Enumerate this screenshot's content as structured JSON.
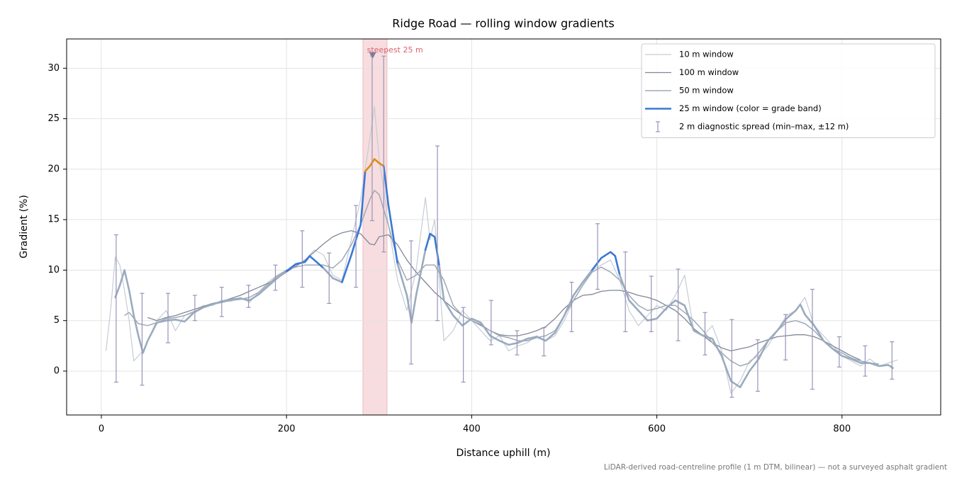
{
  "chart_data": {
    "type": "line",
    "title": "Ridge Road — rolling window gradients",
    "xlabel": "Distance uphill (m)",
    "ylabel": "Gradient (%)",
    "note": "LiDAR-derived road-centreline profile (1 m DTM, bilinear) — not a surveyed asphalt gradient",
    "xlim": [
      -37.5,
      906.6
    ],
    "ylim": [
      -4.35,
      32.9
    ],
    "xticks": [
      0,
      200,
      400,
      600,
      800
    ],
    "yticks": [
      0,
      5,
      10,
      15,
      20,
      25,
      30
    ],
    "grid": true,
    "legend": "upper right",
    "highlight": {
      "label": "steepest 25 m",
      "x": [
        282.5,
        308.6
      ],
      "color": "#d9646e",
      "peak_x": 293,
      "peak_y": 31.3
    },
    "series": [
      {
        "name": "10 m window",
        "color": "#c5ccd6",
        "width": 1.2,
        "x": [
          5,
          10,
          15,
          20,
          25,
          30,
          35,
          40,
          45,
          50,
          60,
          70,
          80,
          90,
          100,
          110,
          120,
          130,
          140,
          150,
          160,
          170,
          180,
          190,
          200,
          210,
          220,
          230,
          240,
          250,
          260,
          270,
          280,
          285,
          290,
          295,
          300,
          305,
          310,
          320,
          330,
          340,
          350,
          355,
          360,
          365,
          370,
          380,
          390,
          400,
          410,
          420,
          430,
          440,
          450,
          460,
          470,
          480,
          490,
          500,
          510,
          520,
          530,
          540,
          550,
          560,
          570,
          580,
          590,
          600,
          610,
          620,
          630,
          640,
          650,
          660,
          670,
          680,
          690,
          700,
          710,
          720,
          730,
          740,
          750,
          760,
          770,
          780,
          790,
          800,
          810,
          820,
          830,
          840,
          850,
          860
        ],
        "values": [
          2,
          6,
          11.3,
          10.5,
          8,
          5,
          1,
          1.5,
          2,
          3,
          5,
          6,
          4,
          5.5,
          5.8,
          6.5,
          6.5,
          7,
          6.9,
          7.3,
          6.8,
          7.8,
          8.8,
          9.5,
          10,
          10.3,
          11,
          12,
          11.5,
          9.5,
          9,
          13,
          17,
          20,
          23,
          26.2,
          21,
          18,
          14.5,
          9,
          6,
          10,
          17.2,
          13,
          15,
          9,
          3,
          4,
          6,
          5,
          4,
          3,
          3.5,
          2,
          2.5,
          2.8,
          3.5,
          3,
          3.5,
          5,
          7,
          8.5,
          10,
          10.5,
          11,
          9,
          6,
          4.5,
          5.5,
          6.5,
          6,
          7.5,
          9.5,
          4,
          3.5,
          4.5,
          2,
          -2.2,
          -1,
          1,
          1.5,
          2.5,
          4,
          5.5,
          6,
          7.3,
          4.5,
          3.5,
          2.5,
          1.5,
          1,
          0.5,
          1.2,
          0.5,
          0.8,
          1.1
        ]
      },
      {
        "name": "100 m window",
        "color": "#808896",
        "width": 1.3,
        "x": [
          50,
          60,
          70,
          80,
          90,
          100,
          110,
          120,
          130,
          140,
          150,
          160,
          170,
          180,
          190,
          200,
          210,
          220,
          230,
          240,
          250,
          260,
          270,
          280,
          290,
          295,
          300,
          310,
          320,
          330,
          340,
          350,
          360,
          370,
          380,
          390,
          400,
          410,
          420,
          430,
          440,
          450,
          460,
          470,
          480,
          490,
          500,
          510,
          520,
          530,
          540,
          550,
          560,
          570,
          580,
          590,
          600,
          610,
          620,
          630,
          640,
          650,
          660,
          670,
          680,
          690,
          700,
          710,
          720,
          730,
          740,
          750,
          760,
          770,
          780,
          790,
          800,
          810,
          820
        ],
        "values": [
          5.3,
          5.0,
          5.3,
          5.5,
          5.8,
          6.1,
          6.4,
          6.7,
          6.9,
          7.2,
          7.5,
          7.9,
          8.3,
          8.7,
          9.2,
          9.8,
          10.4,
          11.0,
          11.8,
          12.6,
          13.3,
          13.7,
          13.9,
          13.6,
          12.6,
          12.5,
          13.3,
          13.5,
          12.5,
          11.0,
          9.8,
          8.8,
          7.8,
          7.0,
          6.2,
          5.5,
          5.0,
          4.6,
          4.0,
          3.6,
          3.5,
          3.5,
          3.7,
          4.0,
          4.4,
          5.2,
          6.2,
          7.0,
          7.5,
          7.6,
          7.9,
          8.0,
          8.0,
          7.8,
          7.5,
          7.3,
          7.0,
          6.5,
          6.0,
          5.2,
          4.2,
          3.5,
          2.8,
          2.3,
          2.0,
          2.2,
          2.4,
          2.8,
          3.1,
          3.4,
          3.5,
          3.6,
          3.6,
          3.4,
          3.0,
          2.5,
          2.0,
          1.5,
          1.1
        ]
      },
      {
        "name": "50 m window",
        "color": "#a0a9b8",
        "width": 1.5,
        "x": [
          25,
          30,
          40,
          50,
          60,
          70,
          80,
          90,
          100,
          110,
          120,
          130,
          140,
          150,
          160,
          170,
          180,
          190,
          200,
          210,
          220,
          230,
          240,
          250,
          260,
          270,
          280,
          290,
          295,
          300,
          310,
          320,
          330,
          340,
          350,
          360,
          370,
          380,
          390,
          400,
          410,
          420,
          430,
          440,
          450,
          460,
          470,
          480,
          490,
          500,
          510,
          520,
          530,
          540,
          550,
          560,
          570,
          580,
          590,
          600,
          610,
          620,
          630,
          640,
          650,
          660,
          670,
          680,
          690,
          700,
          710,
          720,
          730,
          740,
          750,
          760,
          770,
          780,
          790,
          800,
          810,
          820,
          830,
          840
        ],
        "values": [
          5.5,
          5.8,
          4.7,
          4.5,
          4.8,
          5.2,
          5.3,
          5.5,
          5.9,
          6.3,
          6.6,
          6.8,
          7.0,
          7.1,
          7.3,
          7.8,
          8.6,
          9.4,
          10.0,
          10.3,
          10.5,
          10.5,
          10.5,
          10.2,
          11.0,
          12.5,
          14.5,
          17.0,
          17.9,
          17.5,
          14.5,
          11.0,
          9.0,
          9.5,
          10.5,
          10.5,
          9.0,
          6.5,
          5.5,
          5.0,
          4.5,
          4.0,
          3.5,
          3.3,
          3.0,
          3.0,
          3.3,
          3.5,
          4.0,
          5.5,
          7.0,
          8.5,
          9.8,
          10.3,
          9.8,
          9.0,
          7.5,
          6.5,
          6.0,
          6.2,
          6.5,
          6.5,
          5.8,
          5.0,
          4.0,
          2.8,
          1.8,
          1.0,
          0.5,
          0.8,
          1.8,
          3.0,
          4.0,
          4.8,
          5.0,
          4.7,
          4.0,
          3.0,
          2.2,
          1.8,
          1.3,
          1.0,
          0.8,
          0.7
        ]
      },
      {
        "name": "25 m window (color = grade band)",
        "color": "#3a78d4",
        "width": 2.6,
        "grade_band_limits": [
          10,
          20
        ],
        "grade_band_colors": [
          "#9aabbf",
          "#3a78d4",
          "#e08c10"
        ],
        "x": [
          15,
          20,
          25,
          30,
          35,
          40,
          45,
          50,
          60,
          70,
          80,
          90,
          100,
          110,
          120,
          130,
          140,
          150,
          160,
          170,
          180,
          190,
          200,
          210,
          220,
          225,
          230,
          240,
          250,
          260,
          270,
          280,
          285,
          290,
          295,
          300,
          305,
          310,
          320,
          330,
          335,
          340,
          350,
          355,
          360,
          365,
          370,
          380,
          390,
          400,
          410,
          420,
          430,
          440,
          450,
          460,
          470,
          480,
          490,
          500,
          510,
          520,
          530,
          540,
          550,
          555,
          560,
          570,
          580,
          590,
          600,
          610,
          620,
          630,
          640,
          650,
          660,
          670,
          680,
          690,
          700,
          710,
          720,
          730,
          740,
          750,
          755,
          760,
          770,
          780,
          790,
          800,
          810,
          820,
          830,
          840,
          850,
          855
        ],
        "values": [
          7.3,
          8.5,
          10,
          8,
          5.5,
          3.5,
          1.8,
          3,
          4.8,
          5.0,
          5.1,
          4.9,
          5.8,
          6.3,
          6.6,
          6.9,
          7.1,
          7.2,
          7.0,
          7.6,
          8.4,
          9.2,
          9.9,
          10.6,
          10.8,
          11.4,
          11.0,
          10.2,
          9.2,
          8.8,
          11.5,
          14.5,
          19.8,
          20.3,
          21.0,
          20.6,
          20.3,
          16.5,
          10.6,
          7.5,
          4.8,
          7.5,
          12.0,
          13.6,
          13.3,
          10.4,
          7.0,
          5.5,
          4.5,
          5.2,
          4.8,
          3.5,
          3.0,
          2.6,
          2.8,
          3.2,
          3.4,
          3.0,
          3.8,
          5.5,
          7.5,
          8.8,
          10.0,
          11.2,
          11.8,
          11.4,
          9.5,
          7.0,
          6.0,
          5.0,
          5.2,
          6.2,
          7.0,
          6.5,
          4.0,
          3.5,
          3.2,
          1.5,
          -1.0,
          -1.6,
          0.0,
          1.2,
          3.0,
          4.0,
          5.2,
          6.0,
          6.6,
          5.6,
          4.5,
          3.0,
          2.2,
          1.5,
          1.2,
          0.8,
          0.8,
          0.5,
          0.6,
          0.3
        ]
      }
    ],
    "spread": {
      "name": "2 m diagnostic spread (min–max, ±12 m)",
      "color": "#9a93b8",
      "x": [
        16,
        44,
        72,
        101,
        130,
        159,
        188,
        217,
        246,
        275,
        292.5,
        305,
        334.6,
        363,
        391,
        421,
        449,
        478,
        508,
        536,
        566,
        594,
        623,
        652,
        681,
        709,
        739,
        768,
        797,
        825,
        854
      ],
      "low": [
        -1.1,
        -1.4,
        2.8,
        5.0,
        5.4,
        6.3,
        8.0,
        8.3,
        6.7,
        8.3,
        14.9,
        11.8,
        0.7,
        5.0,
        -1.1,
        2.6,
        1.6,
        1.5,
        3.9,
        8.1,
        3.9,
        3.9,
        3.0,
        1.6,
        -2.6,
        -2.0,
        1.1,
        -1.8,
        0.4,
        -0.5,
        -0.8
      ],
      "high": [
        13.5,
        7.7,
        7.7,
        7.5,
        8.3,
        8.5,
        10.5,
        13.9,
        11.7,
        16.4,
        31.2,
        31.2,
        12.9,
        22.3,
        6.3,
        7.0,
        4.0,
        4.3,
        8.8,
        14.6,
        11.8,
        9.4,
        10.1,
        5.8,
        5.1,
        3.1,
        5.6,
        8.1,
        3.4,
        2.5,
        2.9
      ]
    }
  }
}
